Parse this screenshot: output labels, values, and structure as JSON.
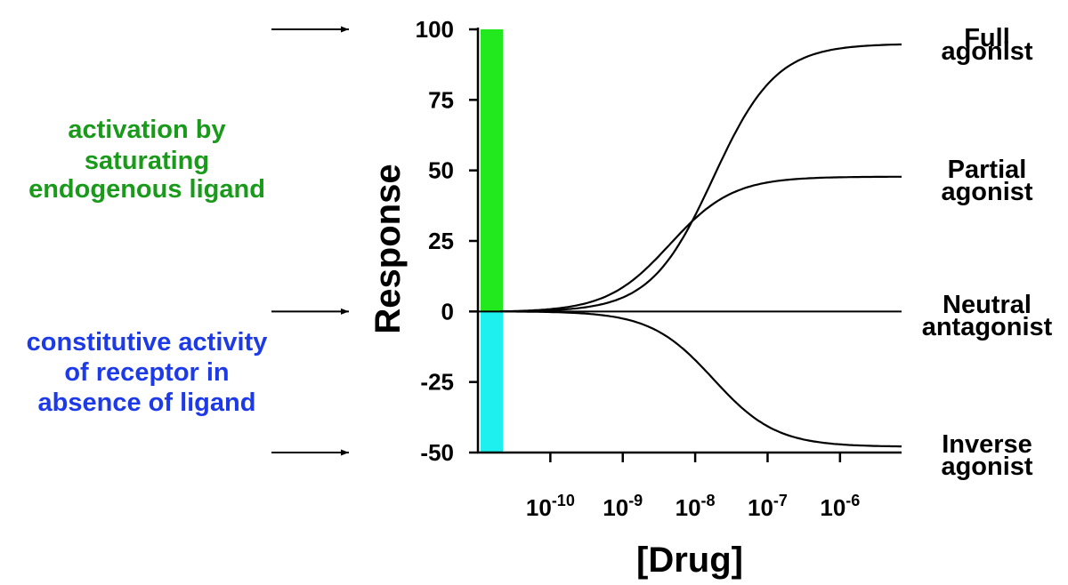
{
  "chart_data": {
    "type": "line",
    "title": "",
    "xlabel": "[Drug]",
    "ylabel": "Response",
    "x_scale": "log10",
    "x_ticks": [
      {
        "base": "10",
        "exp": "-10",
        "value": -10
      },
      {
        "base": "10",
        "exp": "-9",
        "value": -9
      },
      {
        "base": "10",
        "exp": "-8",
        "value": -8
      },
      {
        "base": "10",
        "exp": "-7",
        "value": -7
      },
      {
        "base": "10",
        "exp": "-6",
        "value": -6
      }
    ],
    "y_ticks": [
      {
        "label": "100",
        "value": 100
      },
      {
        "label": "75",
        "value": 75
      },
      {
        "label": "50",
        "value": 50
      },
      {
        "label": "25",
        "value": 25
      },
      {
        "label": "0",
        "value": 0
      },
      {
        "label": "-25",
        "value": -25
      },
      {
        "label": "-50",
        "value": -50
      }
    ],
    "xlim": [
      -11,
      -5.15
    ],
    "ylim": [
      -50,
      100
    ],
    "series": [
      {
        "name": "Full agonist",
        "label_lines": [
          "Full",
          "agonist"
        ],
        "bottom": 0,
        "top": 95,
        "logEC50": -7.75,
        "hill": 1.0
      },
      {
        "name": "Partial agonist",
        "label_lines": [
          "Partial",
          "agonist"
        ],
        "bottom": 0,
        "top": 48,
        "logEC50": -8.35,
        "hill": 1.0
      },
      {
        "name": "Neutral antagonist",
        "label_lines": [
          "Neutral",
          "antagonist"
        ],
        "bottom": 0,
        "top": 0,
        "logEC50": -8,
        "hill": 1.0
      },
      {
        "name": "Inverse agonist",
        "label_lines": [
          "Inverse",
          "agonist"
        ],
        "bottom": 0,
        "top": -48,
        "logEC50": -7.75,
        "hill": 1.0
      }
    ],
    "bands": [
      {
        "name": "activation",
        "from": 0,
        "to": 100,
        "color": "#22e81e"
      },
      {
        "name": "constitutive",
        "from": -50,
        "to": 0,
        "color": "#1ef0f0"
      }
    ],
    "annotations": [
      {
        "name": "activation-note",
        "lines": [
          "activation by",
          "saturating",
          "endogenous ligand"
        ],
        "color": "#1a9a1a",
        "arrow_at": 100
      },
      {
        "name": "constitutive-note",
        "lines": [
          "constitutive activity",
          "of receptor in",
          "absence of ligand"
        ],
        "color": "#1d3ae8",
        "arrow_at": 0
      },
      {
        "name": "inverse-arrow",
        "lines": [],
        "color": "#000000",
        "arrow_at": -50
      }
    ]
  }
}
